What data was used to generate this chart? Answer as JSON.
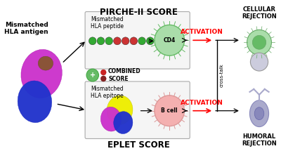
{
  "bg_color": "#ffffff",
  "pirche_label": "PIRCHE-II SCORE",
  "eplet_label": "EPLET SCORE",
  "combined_label": "COMBINED\nSCORE",
  "cellular_label": "CELLULAR\nREJECTION",
  "humoral_label": "HUMORAL\nREJECTION",
  "activation_text": "ACTIVATION",
  "activation_color": "#ff0000",
  "crosstalk_label": "cross-talk",
  "hla_antigen_label": "Mismatched\nHLA antigen",
  "hla_peptide_label": "Mismatched\nHLA peptide",
  "hla_epitope_label": "Mismatched\nHLA epitope",
  "cd4_label": "CD4",
  "bcell_label": "B cell",
  "peptide_bead_colors": [
    "#33aa33",
    "#33aa33",
    "#33aa33",
    "#cc3333",
    "#cc3333",
    "#cc3333",
    "#33aa33",
    "#33aa33",
    "#33aa33",
    "#33aa33",
    "#33aa33"
  ],
  "cd4_circle_color": "#aaddaa",
  "cd4_edge_color": "#66bb66",
  "bcell_circle_color": "#f4b0b0",
  "bcell_edge_color": "#dd9999",
  "cell_top_color": "#aaddaa",
  "cell_top_edge": "#66aa66",
  "cell_bottom_color": "#ccccdd",
  "cell_bottom_edge": "#999999",
  "plasma_color": "#aaaacc",
  "plasma_edge": "#8888bb",
  "font_size_pirche": 8.5,
  "font_size_eplet": 8.5,
  "font_size_small": 5.5,
  "font_size_label": 6.5,
  "font_size_activation": 6.5,
  "font_size_crosstalk": 5.0,
  "font_size_rejection": 6.0
}
